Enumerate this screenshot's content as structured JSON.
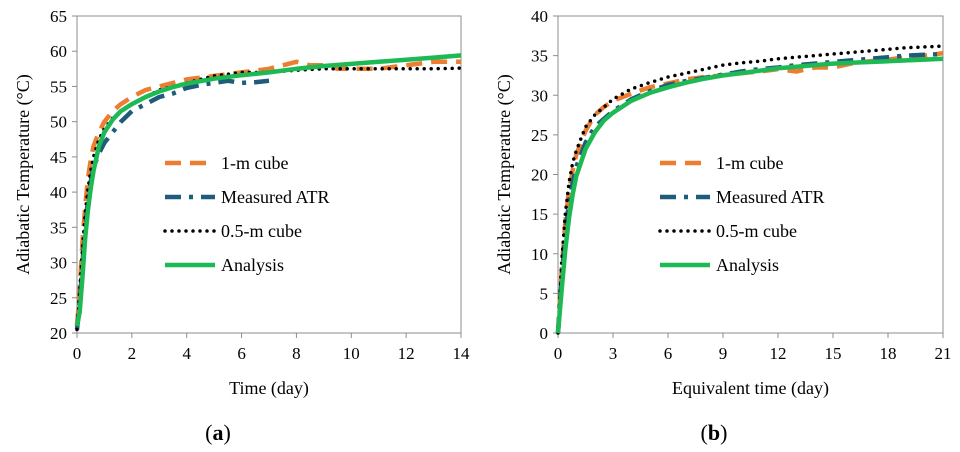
{
  "chart_data": [
    {
      "type": "line",
      "panel_label": "a",
      "xlabel": "Time (day)",
      "ylabel": "Adiabatic Temperature (°C)",
      "xlim": [
        0,
        14
      ],
      "ylim": [
        20,
        65
      ],
      "xticks": [
        0,
        2,
        4,
        6,
        8,
        10,
        12,
        14
      ],
      "yticks": [
        20,
        25,
        30,
        35,
        40,
        45,
        50,
        55,
        60,
        65
      ],
      "grid": false,
      "legend_placement": "center-left",
      "series": [
        {
          "name": "1-m cube",
          "color": "#ED7D31",
          "style": "dashed",
          "x": [
            0,
            0.1,
            0.2,
            0.3,
            0.4,
            0.5,
            0.6,
            0.8,
            1.0,
            1.3,
            1.6,
            2.0,
            2.5,
            3.0,
            3.5,
            4.0,
            5.0,
            6.0,
            7.0,
            7.5,
            8.0,
            8.5,
            9.0,
            9.5,
            10.0,
            11.0,
            12.0,
            13.0,
            14.0
          ],
          "y": [
            21,
            26,
            33,
            38,
            42,
            44.5,
            46.5,
            48.5,
            50,
            51.5,
            52.5,
            53.5,
            54.5,
            55,
            55.5,
            56,
            56.5,
            57,
            57.5,
            58,
            58.5,
            58,
            58,
            57.5,
            57.5,
            57.5,
            58,
            58.5,
            58.5
          ]
        },
        {
          "name": "Measured ATR",
          "color": "#1F5C7A",
          "style": "dash-dot",
          "x": [
            0,
            0.1,
            0.2,
            0.3,
            0.4,
            0.5,
            0.6,
            0.8,
            1.0,
            1.3,
            1.6,
            2.0,
            2.5,
            3.0,
            3.5,
            4.0,
            4.5,
            5.0,
            5.5,
            6.0,
            6.5,
            7.0
          ],
          "y": [
            20.5,
            24,
            30,
            35,
            39,
            41.5,
            43.5,
            45.5,
            47,
            48.5,
            50,
            51.5,
            52.5,
            53.5,
            54,
            54.8,
            55.2,
            55.5,
            55.8,
            55.5,
            55.6,
            55.8
          ]
        },
        {
          "name": "0.5-m cube",
          "color": "#000000",
          "style": "dotted",
          "x": [
            0,
            0.1,
            0.2,
            0.3,
            0.4,
            0.5,
            0.6,
            0.8,
            1.0,
            1.3,
            1.6,
            2.0,
            2.5,
            3.0,
            3.5,
            4.0,
            5.0,
            6.0,
            7.0,
            8.0,
            9.0,
            10.0,
            11.0,
            12.0,
            13.0,
            14.0
          ],
          "y": [
            20.5,
            26,
            32,
            37,
            40.5,
            43,
            45,
            47.5,
            49,
            50.5,
            51.5,
            52.5,
            53.5,
            54.5,
            55,
            55.5,
            56.5,
            57,
            57,
            57.3,
            57.5,
            57.5,
            57.5,
            57.5,
            57.5,
            57.6
          ]
        },
        {
          "name": "Analysis",
          "color": "#1DB954",
          "style": "solid",
          "x": [
            0,
            0.1,
            0.2,
            0.3,
            0.4,
            0.5,
            0.6,
            0.8,
            1.0,
            1.3,
            1.6,
            2.0,
            2.5,
            3.0,
            3.5,
            4.0,
            5.0,
            6.0,
            7.0,
            8.0,
            9.0,
            10.0,
            11.0,
            12.0,
            13.0,
            14.0
          ],
          "y": [
            21,
            23,
            28,
            33.5,
            37.5,
            40.5,
            43,
            46.5,
            48.5,
            50.3,
            51.5,
            52.5,
            53.5,
            54.3,
            54.9,
            55.4,
            56.1,
            56.6,
            57.0,
            57.5,
            57.9,
            58.2,
            58.5,
            58.8,
            59.1,
            59.4
          ]
        }
      ]
    },
    {
      "type": "line",
      "panel_label": "b",
      "xlabel": "Equivalent time (day)",
      "ylabel": "Adiabatic Temperature (°C)",
      "xlim": [
        0,
        21
      ],
      "ylim": [
        0,
        40
      ],
      "xticks": [
        0,
        3,
        6,
        9,
        12,
        15,
        18,
        21
      ],
      "yticks": [
        0,
        5,
        10,
        15,
        20,
        25,
        30,
        35,
        40
      ],
      "grid": false,
      "legend_placement": "center-right",
      "series": [
        {
          "name": "1-m cube",
          "color": "#ED7D31",
          "style": "dashed",
          "x": [
            0,
            0.2,
            0.4,
            0.6,
            0.8,
            1.0,
            1.5,
            2.0,
            2.5,
            3.0,
            4.0,
            5.0,
            6.0,
            7.0,
            8.0,
            9.0,
            10.0,
            11.0,
            12.0,
            13.0,
            14.0,
            15.0,
            16.0,
            17.0,
            18.0,
            19.0,
            20.0,
            21.0
          ],
          "y": [
            0,
            8,
            14,
            18,
            20.5,
            22.5,
            25.5,
            27.5,
            28.5,
            29.3,
            30.2,
            31,
            31.5,
            32,
            32.3,
            32.5,
            32.8,
            33,
            33.3,
            33,
            33.5,
            33.5,
            34,
            34.3,
            34.5,
            34.8,
            35,
            35.3
          ]
        },
        {
          "name": "Measured ATR",
          "color": "#1F5C7A",
          "style": "dash-dot",
          "x": [
            0,
            0.2,
            0.4,
            0.6,
            0.8,
            1.0,
            1.5,
            2.0,
            2.5,
            3.0,
            4.0,
            5.0,
            6.0,
            7.0,
            8.0,
            9.0,
            10.0,
            11.0,
            12.0,
            13.0,
            14.0,
            15.0,
            16.0,
            17.0,
            18.0,
            19.0,
            20.0,
            21.0
          ],
          "y": [
            0,
            7,
            12.5,
            16.5,
            19,
            21,
            24,
            26,
            27,
            28,
            29.5,
            30.5,
            31.3,
            31.8,
            32.2,
            32.6,
            33,
            33.3,
            33.5,
            33.8,
            34,
            34.2,
            34.4,
            34.6,
            34.8,
            35,
            35.1,
            35.2
          ]
        },
        {
          "name": "0.5-m cube",
          "color": "#000000",
          "style": "dotted",
          "x": [
            0,
            0.2,
            0.4,
            0.6,
            0.8,
            1.0,
            1.5,
            2.0,
            2.5,
            3.0,
            4.0,
            5.0,
            6.0,
            7.0,
            8.0,
            9.0,
            10.0,
            11.0,
            12.0,
            13.0,
            14.0,
            15.0,
            16.0,
            17.0,
            18.0,
            19.0,
            20.0,
            21.0
          ],
          "y": [
            0,
            9,
            15,
            19,
            21.5,
            23,
            26,
            27.5,
            28.5,
            29.5,
            30.8,
            31.6,
            32.3,
            32.8,
            33.3,
            33.8,
            34.1,
            34.3,
            34.6,
            34.8,
            35,
            35.2,
            35.4,
            35.6,
            35.8,
            36,
            36.1,
            36.2
          ]
        },
        {
          "name": "Analysis",
          "color": "#1DB954",
          "style": "solid",
          "x": [
            0,
            0.2,
            0.4,
            0.6,
            0.8,
            1.0,
            1.5,
            2.0,
            2.5,
            3.0,
            4.0,
            5.0,
            6.0,
            7.0,
            8.0,
            9.0,
            10.0,
            11.0,
            12.0,
            13.0,
            14.0,
            15.0,
            16.0,
            17.0,
            18.0,
            19.0,
            20.0,
            21.0
          ],
          "y": [
            0,
            5.5,
            10.5,
            14.5,
            17.5,
            19.8,
            23.2,
            25.3,
            26.8,
            27.8,
            29.3,
            30.3,
            31.0,
            31.6,
            32.1,
            32.5,
            32.8,
            33.1,
            33.4,
            33.6,
            33.8,
            34.0,
            34.1,
            34.2,
            34.3,
            34.4,
            34.5,
            34.6
          ]
        }
      ]
    }
  ]
}
